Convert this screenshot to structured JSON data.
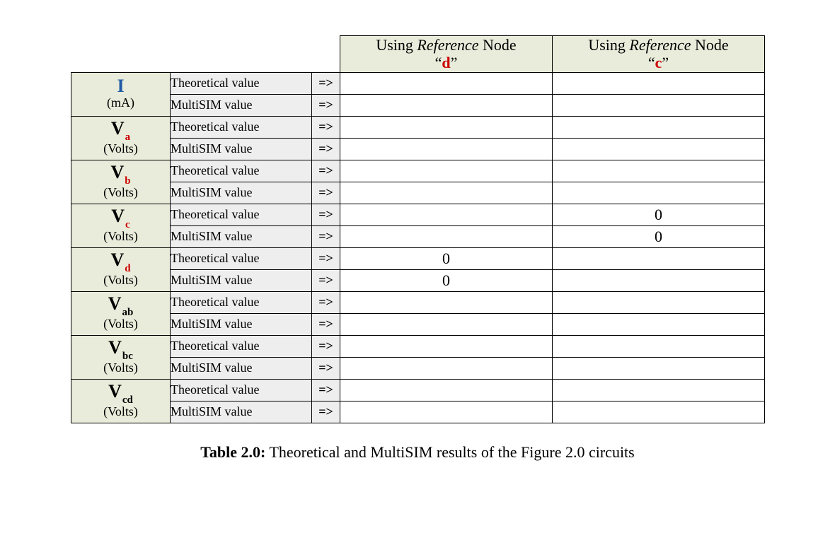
{
  "colors": {
    "header_bg": "#e9ecda",
    "symbol_bg": "#e9ecda",
    "label_bg": "#eeeeee",
    "value_bg": "#ffffff",
    "border": "#000000",
    "node_d": "#cc0000",
    "node_c": "#cc0000",
    "sym_I": "#1f5aa6",
    "sym_V": "#000000",
    "sub_a": "#cc0000",
    "sub_b": "#cc0000",
    "sub_c": "#cc0000",
    "sub_d": "#cc0000",
    "sub_ab": "#000000",
    "sub_bc": "#000000",
    "sub_cd": "#000000"
  },
  "fontsizes": {
    "header": 22,
    "symbol_main": 26,
    "symbol_sub": 15,
    "symbol_unit": 18,
    "label": 18,
    "arrow": 18,
    "value": 22,
    "caption": 22
  },
  "header": {
    "prefix": "Using ",
    "ref_word": "Reference",
    "suffix": " Node",
    "quote_open": "“",
    "quote_close": "”",
    "col_d_letter": "d",
    "col_c_letter": "c"
  },
  "labels": {
    "theoretical": "Theoretical value",
    "multisim": "MultiSIM value",
    "arrow": "=>"
  },
  "rows": [
    {
      "sym_base": "I",
      "sym_sub": "",
      "base_color_key": "sym_I",
      "sub_color_key": "",
      "unit": "(mA)",
      "d_theo": "",
      "d_sim": "",
      "c_theo": "",
      "c_sim": ""
    },
    {
      "sym_base": "V",
      "sym_sub": "a",
      "base_color_key": "sym_V",
      "sub_color_key": "sub_a",
      "unit": "(Volts)",
      "d_theo": "",
      "d_sim": "",
      "c_theo": "",
      "c_sim": ""
    },
    {
      "sym_base": "V",
      "sym_sub": "b",
      "base_color_key": "sym_V",
      "sub_color_key": "sub_b",
      "unit": "(Volts)",
      "d_theo": "",
      "d_sim": "",
      "c_theo": "",
      "c_sim": ""
    },
    {
      "sym_base": "V",
      "sym_sub": "c",
      "base_color_key": "sym_V",
      "sub_color_key": "sub_c",
      "unit": "(Volts)",
      "d_theo": "",
      "d_sim": "",
      "c_theo": "0",
      "c_sim": "0"
    },
    {
      "sym_base": "V",
      "sym_sub": "d",
      "base_color_key": "sym_V",
      "sub_color_key": "sub_d",
      "unit": "(Volts)",
      "d_theo": "0",
      "d_sim": "0",
      "c_theo": "",
      "c_sim": ""
    },
    {
      "sym_base": "V",
      "sym_sub": "ab",
      "base_color_key": "sym_V",
      "sub_color_key": "sub_ab",
      "unit": "(Volts)",
      "d_theo": "",
      "d_sim": "",
      "c_theo": "",
      "c_sim": ""
    },
    {
      "sym_base": "V",
      "sym_sub": "bc",
      "base_color_key": "sym_V",
      "sub_color_key": "sub_bc",
      "unit": "(Volts)",
      "d_theo": "",
      "d_sim": "",
      "c_theo": "",
      "c_sim": ""
    },
    {
      "sym_base": "V",
      "sym_sub": "cd",
      "base_color_key": "sym_V",
      "sub_color_key": "sub_cd",
      "unit": "(Volts)",
      "d_theo": "",
      "d_sim": "",
      "c_theo": "",
      "c_sim": ""
    }
  ],
  "caption": {
    "label": "Table 2.0:",
    "text": " Theoretical and MultiSIM results of the Figure 2.0 circuits"
  }
}
